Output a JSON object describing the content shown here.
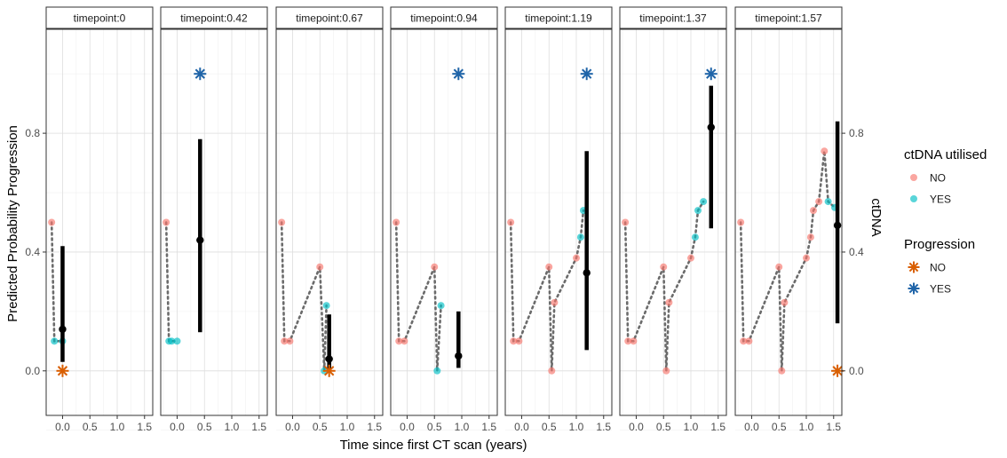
{
  "chart_data": {
    "type": "scatter",
    "xlabel": "Time since first CT scan (years)",
    "ylabel": "Predicted Probability Progression",
    "ylabel_right": "ctDNA",
    "xlim": [
      -0.3,
      1.65
    ],
    "ylim": [
      -0.15,
      1.15
    ],
    "x_ticks": [
      "0.0",
      "0.5",
      "1.0",
      "1.5"
    ],
    "x_tick_values": [
      0,
      0.5,
      1,
      1.5
    ],
    "y_ticks": [
      "0.0",
      "0.4",
      "0.8"
    ],
    "y_tick_values": [
      0,
      0.4,
      0.8
    ],
    "grid": true,
    "legend_position": "right",
    "legends": [
      {
        "title": "ctDNA utilised",
        "items": [
          {
            "label": "NO",
            "color": "#f8766d",
            "marker": "circle"
          },
          {
            "label": "YES",
            "color": "#00bfc4",
            "marker": "circle"
          }
        ]
      },
      {
        "title": "Progression",
        "items": [
          {
            "label": "NO",
            "color": "#d95f02",
            "marker": "asterisk"
          },
          {
            "label": "YES",
            "color": "#1f64a8",
            "marker": "asterisk"
          }
        ]
      }
    ],
    "panels": [
      {
        "label": "timepoint:0",
        "ctdna": [
          {
            "x": -0.2,
            "y": 0.5,
            "utilised": "NO"
          },
          {
            "x": -0.15,
            "y": 0.1,
            "utilised": "YES"
          },
          {
            "x": 0.0,
            "y": 0.1,
            "utilised": "YES"
          }
        ],
        "prediction": {
          "x": 0.0,
          "y": 0.14,
          "lower": 0.03,
          "upper": 0.42
        },
        "progression": {
          "x": 0.0,
          "y": 0.0,
          "status": "NO"
        }
      },
      {
        "label": "timepoint:0.42",
        "ctdna": [
          {
            "x": -0.2,
            "y": 0.5,
            "utilised": "NO"
          },
          {
            "x": -0.15,
            "y": 0.1,
            "utilised": "YES"
          },
          {
            "x": -0.1,
            "y": 0.1,
            "utilised": "YES"
          },
          {
            "x": 0.0,
            "y": 0.1,
            "utilised": "YES"
          }
        ],
        "prediction": {
          "x": 0.42,
          "y": 0.44,
          "lower": 0.13,
          "upper": 0.78
        },
        "progression": {
          "x": 0.42,
          "y": 1.0,
          "status": "YES"
        }
      },
      {
        "label": "timepoint:0.67",
        "ctdna": [
          {
            "x": -0.2,
            "y": 0.5,
            "utilised": "NO"
          },
          {
            "x": -0.15,
            "y": 0.1,
            "utilised": "NO"
          },
          {
            "x": -0.05,
            "y": 0.1,
            "utilised": "NO"
          },
          {
            "x": 0.5,
            "y": 0.35,
            "utilised": "NO"
          },
          {
            "x": 0.58,
            "y": 0.0,
            "utilised": "YES"
          },
          {
            "x": 0.62,
            "y": 0.22,
            "utilised": "YES"
          }
        ],
        "prediction": {
          "x": 0.67,
          "y": 0.04,
          "lower": 0.0,
          "upper": 0.19
        },
        "progression": {
          "x": 0.67,
          "y": 0.0,
          "status": "NO"
        }
      },
      {
        "label": "timepoint:0.94",
        "ctdna": [
          {
            "x": -0.2,
            "y": 0.5,
            "utilised": "NO"
          },
          {
            "x": -0.15,
            "y": 0.1,
            "utilised": "NO"
          },
          {
            "x": -0.05,
            "y": 0.1,
            "utilised": "NO"
          },
          {
            "x": 0.5,
            "y": 0.35,
            "utilised": "NO"
          },
          {
            "x": 0.55,
            "y": 0.0,
            "utilised": "YES"
          },
          {
            "x": 0.62,
            "y": 0.22,
            "utilised": "YES"
          }
        ],
        "prediction": {
          "x": 0.94,
          "y": 0.05,
          "lower": 0.01,
          "upper": 0.2
        },
        "progression": {
          "x": 0.94,
          "y": 1.0,
          "status": "YES"
        }
      },
      {
        "label": "timepoint:1.19",
        "ctdna": [
          {
            "x": -0.2,
            "y": 0.5,
            "utilised": "NO"
          },
          {
            "x": -0.15,
            "y": 0.1,
            "utilised": "NO"
          },
          {
            "x": -0.05,
            "y": 0.1,
            "utilised": "NO"
          },
          {
            "x": 0.5,
            "y": 0.35,
            "utilised": "NO"
          },
          {
            "x": 0.55,
            "y": 0.0,
            "utilised": "NO"
          },
          {
            "x": 0.6,
            "y": 0.23,
            "utilised": "NO"
          },
          {
            "x": 1.0,
            "y": 0.38,
            "utilised": "NO"
          },
          {
            "x": 1.08,
            "y": 0.45,
            "utilised": "YES"
          },
          {
            "x": 1.13,
            "y": 0.54,
            "utilised": "YES"
          }
        ],
        "prediction": {
          "x": 1.19,
          "y": 0.33,
          "lower": 0.07,
          "upper": 0.74
        },
        "progression": {
          "x": 1.19,
          "y": 1.0,
          "status": "YES"
        }
      },
      {
        "label": "timepoint:1.37",
        "ctdna": [
          {
            "x": -0.2,
            "y": 0.5,
            "utilised": "NO"
          },
          {
            "x": -0.15,
            "y": 0.1,
            "utilised": "NO"
          },
          {
            "x": -0.05,
            "y": 0.1,
            "utilised": "NO"
          },
          {
            "x": 0.5,
            "y": 0.35,
            "utilised": "NO"
          },
          {
            "x": 0.55,
            "y": 0.0,
            "utilised": "NO"
          },
          {
            "x": 0.6,
            "y": 0.23,
            "utilised": "NO"
          },
          {
            "x": 1.0,
            "y": 0.38,
            "utilised": "NO"
          },
          {
            "x": 1.08,
            "y": 0.45,
            "utilised": "YES"
          },
          {
            "x": 1.13,
            "y": 0.54,
            "utilised": "YES"
          },
          {
            "x": 1.23,
            "y": 0.57,
            "utilised": "YES"
          }
        ],
        "prediction": {
          "x": 1.37,
          "y": 0.82,
          "lower": 0.48,
          "upper": 0.96
        },
        "progression": {
          "x": 1.37,
          "y": 1.0,
          "status": "YES"
        }
      },
      {
        "label": "timepoint:1.57",
        "ctdna": [
          {
            "x": -0.2,
            "y": 0.5,
            "utilised": "NO"
          },
          {
            "x": -0.15,
            "y": 0.1,
            "utilised": "NO"
          },
          {
            "x": -0.05,
            "y": 0.1,
            "utilised": "NO"
          },
          {
            "x": 0.5,
            "y": 0.35,
            "utilised": "NO"
          },
          {
            "x": 0.55,
            "y": 0.0,
            "utilised": "NO"
          },
          {
            "x": 0.6,
            "y": 0.23,
            "utilised": "NO"
          },
          {
            "x": 1.0,
            "y": 0.38,
            "utilised": "NO"
          },
          {
            "x": 1.08,
            "y": 0.45,
            "utilised": "NO"
          },
          {
            "x": 1.13,
            "y": 0.54,
            "utilised": "NO"
          },
          {
            "x": 1.23,
            "y": 0.57,
            "utilised": "NO"
          },
          {
            "x": 1.33,
            "y": 0.74,
            "utilised": "NO"
          },
          {
            "x": 1.4,
            "y": 0.57,
            "utilised": "YES"
          },
          {
            "x": 1.52,
            "y": 0.55,
            "utilised": "YES"
          }
        ],
        "prediction": {
          "x": 1.57,
          "y": 0.49,
          "lower": 0.16,
          "upper": 0.84
        },
        "progression": {
          "x": 1.57,
          "y": 0.0,
          "status": "NO"
        }
      }
    ]
  }
}
